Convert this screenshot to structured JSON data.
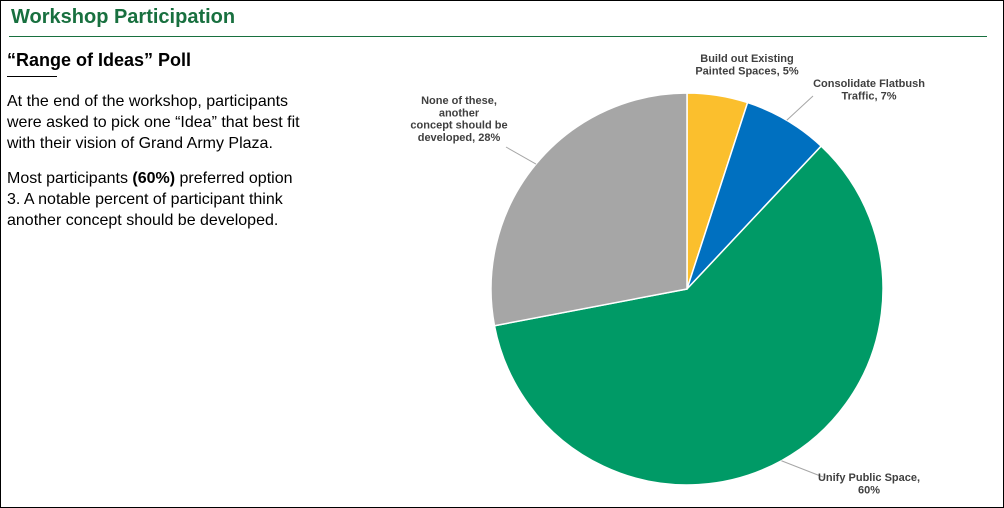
{
  "header": {
    "title": "Workshop Participation"
  },
  "text": {
    "heading": "“Range of Ideas” Poll",
    "paragraphs": [
      [
        "At the end of the workshop, participants were asked to pick one “Idea” that best fit with their vision of Grand Army Plaza."
      ],
      [
        "Most participants ",
        "(60%)",
        " preferred option 3. A notable percent of participant think another concept should be developed."
      ]
    ]
  },
  "chart_data": {
    "type": "pie",
    "values": [
      5,
      7,
      60,
      28
    ],
    "value_labels": [
      [
        "Build out Existing",
        "Painted Spaces, 5%"
      ],
      [
        "Consolidate Flatbush",
        "Traffic, 7%"
      ],
      [
        "Unify Public Space,",
        "60%"
      ],
      [
        "None of these,",
        "another",
        "concept should be",
        "developed, 28%"
      ]
    ],
    "colors": [
      "#fbbf2d",
      "#0070c0",
      "#009a66",
      "#a6a6a6"
    ]
  }
}
